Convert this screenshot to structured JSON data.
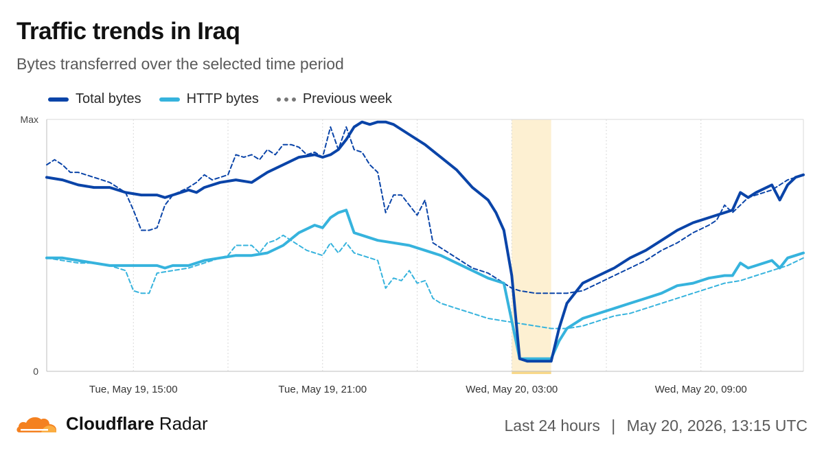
{
  "header": {
    "title": "Traffic trends in Iraq",
    "subtitle": "Bytes transferred over the selected time period"
  },
  "footer": {
    "brand_bold": "Cloudflare",
    "brand_light": "Radar",
    "range": "Last 24 hours",
    "separator": "|",
    "timestamp": "May 20, 2026, 13:15 UTC"
  },
  "colors": {
    "total": "#0a44a8",
    "http": "#36b3dd",
    "previous": "#777777",
    "highlight": "#fdf0d2",
    "grid": "#d8d8d8",
    "logo_orange": "#f48120",
    "logo_light": "#fbad41"
  },
  "chart_data": {
    "type": "line",
    "title": "Traffic trends in Iraq",
    "subtitle": "Bytes transferred over the selected time period",
    "y_tick_labels": [
      "Max",
      "0"
    ],
    "ylim": [
      0,
      100
    ],
    "x_ticks": [
      {
        "t": 2.75,
        "label": "Tue, May 19, 15:00"
      },
      {
        "t": 8.75,
        "label": "Tue, May 19, 21:00"
      },
      {
        "t": 14.75,
        "label": "Wed, May 20, 03:00"
      },
      {
        "t": 20.75,
        "label": "Wed, May 20, 09:00"
      }
    ],
    "minor_gridlines_t": [
      0,
      5.75,
      11.75,
      17.75
    ],
    "xlim": [
      0,
      24
    ],
    "legend": [
      "Total bytes",
      "HTTP bytes",
      "Previous week"
    ],
    "legend_position": "top-left",
    "highlight_range_t": [
      14.75,
      16.0
    ],
    "grid": true,
    "series": [
      {
        "name": "Total bytes",
        "style": "solid",
        "points": [
          [
            0,
            77
          ],
          [
            0.5,
            76
          ],
          [
            1,
            74
          ],
          [
            1.5,
            73
          ],
          [
            2,
            73
          ],
          [
            2.5,
            71
          ],
          [
            3,
            70
          ],
          [
            3.5,
            70
          ],
          [
            3.75,
            69
          ],
          [
            4,
            70
          ],
          [
            4.5,
            72
          ],
          [
            4.75,
            71
          ],
          [
            5,
            73
          ],
          [
            5.5,
            75
          ],
          [
            6,
            76
          ],
          [
            6.5,
            75
          ],
          [
            6.75,
            77
          ],
          [
            7,
            79
          ],
          [
            7.5,
            82
          ],
          [
            8,
            85
          ],
          [
            8.5,
            86
          ],
          [
            8.75,
            85
          ],
          [
            9,
            86
          ],
          [
            9.25,
            88
          ],
          [
            9.5,
            92
          ],
          [
            9.75,
            97
          ],
          [
            10,
            99
          ],
          [
            10.25,
            98
          ],
          [
            10.5,
            99
          ],
          [
            10.75,
            99
          ],
          [
            11,
            98
          ],
          [
            11.5,
            94
          ],
          [
            12,
            90
          ],
          [
            12.5,
            85
          ],
          [
            13,
            80
          ],
          [
            13.5,
            73
          ],
          [
            14,
            68
          ],
          [
            14.25,
            63
          ],
          [
            14.5,
            56
          ],
          [
            14.75,
            38
          ],
          [
            15,
            5
          ],
          [
            15.25,
            4
          ],
          [
            15.5,
            4
          ],
          [
            16,
            4
          ],
          [
            16.25,
            17
          ],
          [
            16.5,
            27
          ],
          [
            17,
            35
          ],
          [
            17.5,
            38
          ],
          [
            18,
            41
          ],
          [
            18.5,
            45
          ],
          [
            19,
            48
          ],
          [
            19.5,
            52
          ],
          [
            20,
            56
          ],
          [
            20.5,
            59
          ],
          [
            21,
            61
          ],
          [
            21.5,
            63
          ],
          [
            21.75,
            64
          ],
          [
            22,
            71
          ],
          [
            22.25,
            69
          ],
          [
            22.5,
            71
          ],
          [
            23,
            74
          ],
          [
            23.25,
            68
          ],
          [
            23.5,
            74
          ],
          [
            23.75,
            77
          ],
          [
            24,
            78
          ]
        ]
      },
      {
        "name": "HTTP bytes",
        "style": "solid",
        "points": [
          [
            0,
            45
          ],
          [
            0.5,
            45
          ],
          [
            1,
            44
          ],
          [
            1.5,
            43
          ],
          [
            2,
            42
          ],
          [
            2.5,
            42
          ],
          [
            3,
            42
          ],
          [
            3.5,
            42
          ],
          [
            3.75,
            41
          ],
          [
            4,
            42
          ],
          [
            4.5,
            42
          ],
          [
            5,
            44
          ],
          [
            5.5,
            45
          ],
          [
            6,
            46
          ],
          [
            6.5,
            46
          ],
          [
            7,
            47
          ],
          [
            7.5,
            50
          ],
          [
            8,
            55
          ],
          [
            8.5,
            58
          ],
          [
            8.75,
            57
          ],
          [
            9,
            61
          ],
          [
            9.25,
            63
          ],
          [
            9.5,
            64
          ],
          [
            9.75,
            55
          ],
          [
            10,
            54
          ],
          [
            10.5,
            52
          ],
          [
            11,
            51
          ],
          [
            11.5,
            50
          ],
          [
            12,
            48
          ],
          [
            12.5,
            46
          ],
          [
            13,
            43
          ],
          [
            13.5,
            40
          ],
          [
            14,
            37
          ],
          [
            14.5,
            35
          ],
          [
            14.75,
            20
          ],
          [
            15,
            5
          ],
          [
            15.25,
            5
          ],
          [
            15.5,
            5
          ],
          [
            16,
            5
          ],
          [
            16.25,
            12
          ],
          [
            16.5,
            17
          ],
          [
            17,
            21
          ],
          [
            17.5,
            23
          ],
          [
            18,
            25
          ],
          [
            18.5,
            27
          ],
          [
            19,
            29
          ],
          [
            19.5,
            31
          ],
          [
            20,
            34
          ],
          [
            20.5,
            35
          ],
          [
            21,
            37
          ],
          [
            21.5,
            38
          ],
          [
            21.75,
            38
          ],
          [
            22,
            43
          ],
          [
            22.25,
            41
          ],
          [
            22.5,
            42
          ],
          [
            23,
            44
          ],
          [
            23.25,
            41
          ],
          [
            23.5,
            45
          ],
          [
            23.75,
            46
          ],
          [
            24,
            47
          ]
        ]
      },
      {
        "name": "Previous week",
        "style": "dashed",
        "points": [
          [
            0,
            82
          ],
          [
            0.25,
            84
          ],
          [
            0.5,
            82
          ],
          [
            0.75,
            79
          ],
          [
            1,
            79
          ],
          [
            1.5,
            77
          ],
          [
            2,
            75
          ],
          [
            2.5,
            71
          ],
          [
            2.75,
            64
          ],
          [
            3,
            56
          ],
          [
            3.25,
            56
          ],
          [
            3.5,
            57
          ],
          [
            3.75,
            66
          ],
          [
            4,
            70
          ],
          [
            4.5,
            73
          ],
          [
            4.75,
            75
          ],
          [
            5,
            78
          ],
          [
            5.25,
            76
          ],
          [
            5.5,
            77
          ],
          [
            5.75,
            78
          ],
          [
            6,
            86
          ],
          [
            6.25,
            85
          ],
          [
            6.5,
            86
          ],
          [
            6.75,
            84
          ],
          [
            7,
            88
          ],
          [
            7.25,
            86
          ],
          [
            7.5,
            90
          ],
          [
            7.75,
            90
          ],
          [
            8,
            89
          ],
          [
            8.25,
            86
          ],
          [
            8.5,
            87
          ],
          [
            8.75,
            85
          ],
          [
            9,
            97
          ],
          [
            9.25,
            88
          ],
          [
            9.5,
            97
          ],
          [
            9.75,
            88
          ],
          [
            10,
            87
          ],
          [
            10.25,
            82
          ],
          [
            10.5,
            79
          ],
          [
            10.75,
            63
          ],
          [
            11,
            70
          ],
          [
            11.25,
            70
          ],
          [
            11.5,
            66
          ],
          [
            11.75,
            62
          ],
          [
            12,
            68
          ],
          [
            12.25,
            51
          ],
          [
            12.5,
            49
          ],
          [
            13,
            45
          ],
          [
            13.5,
            41
          ],
          [
            14,
            39
          ],
          [
            14.25,
            37
          ],
          [
            14.5,
            35
          ],
          [
            14.75,
            33
          ],
          [
            15,
            32
          ],
          [
            15.5,
            31
          ],
          [
            16,
            31
          ],
          [
            16.25,
            31
          ],
          [
            16.5,
            31
          ],
          [
            17,
            32
          ],
          [
            17.5,
            35
          ],
          [
            18,
            38
          ],
          [
            18.5,
            41
          ],
          [
            19,
            44
          ],
          [
            19.5,
            48
          ],
          [
            20,
            51
          ],
          [
            20.5,
            55
          ],
          [
            21,
            58
          ],
          [
            21.25,
            60
          ],
          [
            21.5,
            66
          ],
          [
            21.75,
            63
          ],
          [
            22,
            66
          ],
          [
            22.25,
            69
          ],
          [
            22.5,
            70
          ],
          [
            23,
            72
          ],
          [
            23.5,
            76
          ],
          [
            24,
            78
          ]
        ]
      },
      {
        "name": "Previous week (HTTP)",
        "style": "dashed",
        "points": [
          [
            0,
            45
          ],
          [
            0.5,
            44
          ],
          [
            1,
            43
          ],
          [
            1.5,
            43
          ],
          [
            2,
            42
          ],
          [
            2.5,
            40
          ],
          [
            2.75,
            32
          ],
          [
            3,
            31
          ],
          [
            3.25,
            31
          ],
          [
            3.5,
            39
          ],
          [
            4,
            40
          ],
          [
            4.5,
            41
          ],
          [
            5,
            43
          ],
          [
            5.5,
            45
          ],
          [
            5.75,
            46
          ],
          [
            6,
            50
          ],
          [
            6.25,
            50
          ],
          [
            6.5,
            50
          ],
          [
            6.75,
            47
          ],
          [
            7,
            51
          ],
          [
            7.25,
            52
          ],
          [
            7.5,
            54
          ],
          [
            7.75,
            52
          ],
          [
            8,
            50
          ],
          [
            8.25,
            48
          ],
          [
            8.5,
            47
          ],
          [
            8.75,
            46
          ],
          [
            9,
            51
          ],
          [
            9.25,
            47
          ],
          [
            9.5,
            51
          ],
          [
            9.75,
            47
          ],
          [
            10,
            46
          ],
          [
            10.25,
            45
          ],
          [
            10.5,
            44
          ],
          [
            10.75,
            33
          ],
          [
            11,
            37
          ],
          [
            11.25,
            36
          ],
          [
            11.5,
            40
          ],
          [
            11.75,
            35
          ],
          [
            12,
            36
          ],
          [
            12.25,
            29
          ],
          [
            12.5,
            27
          ],
          [
            13,
            25
          ],
          [
            13.5,
            23
          ],
          [
            14,
            21
          ],
          [
            14.5,
            20
          ],
          [
            15,
            19
          ],
          [
            15.5,
            18
          ],
          [
            16,
            17
          ],
          [
            16.5,
            17
          ],
          [
            17,
            18
          ],
          [
            17.5,
            20
          ],
          [
            18,
            22
          ],
          [
            18.5,
            23
          ],
          [
            19,
            25
          ],
          [
            19.5,
            27
          ],
          [
            20,
            29
          ],
          [
            20.5,
            31
          ],
          [
            21,
            33
          ],
          [
            21.5,
            35
          ],
          [
            22,
            36
          ],
          [
            22.5,
            38
          ],
          [
            23,
            40
          ],
          [
            23.5,
            42
          ],
          [
            24,
            45
          ]
        ]
      }
    ]
  }
}
